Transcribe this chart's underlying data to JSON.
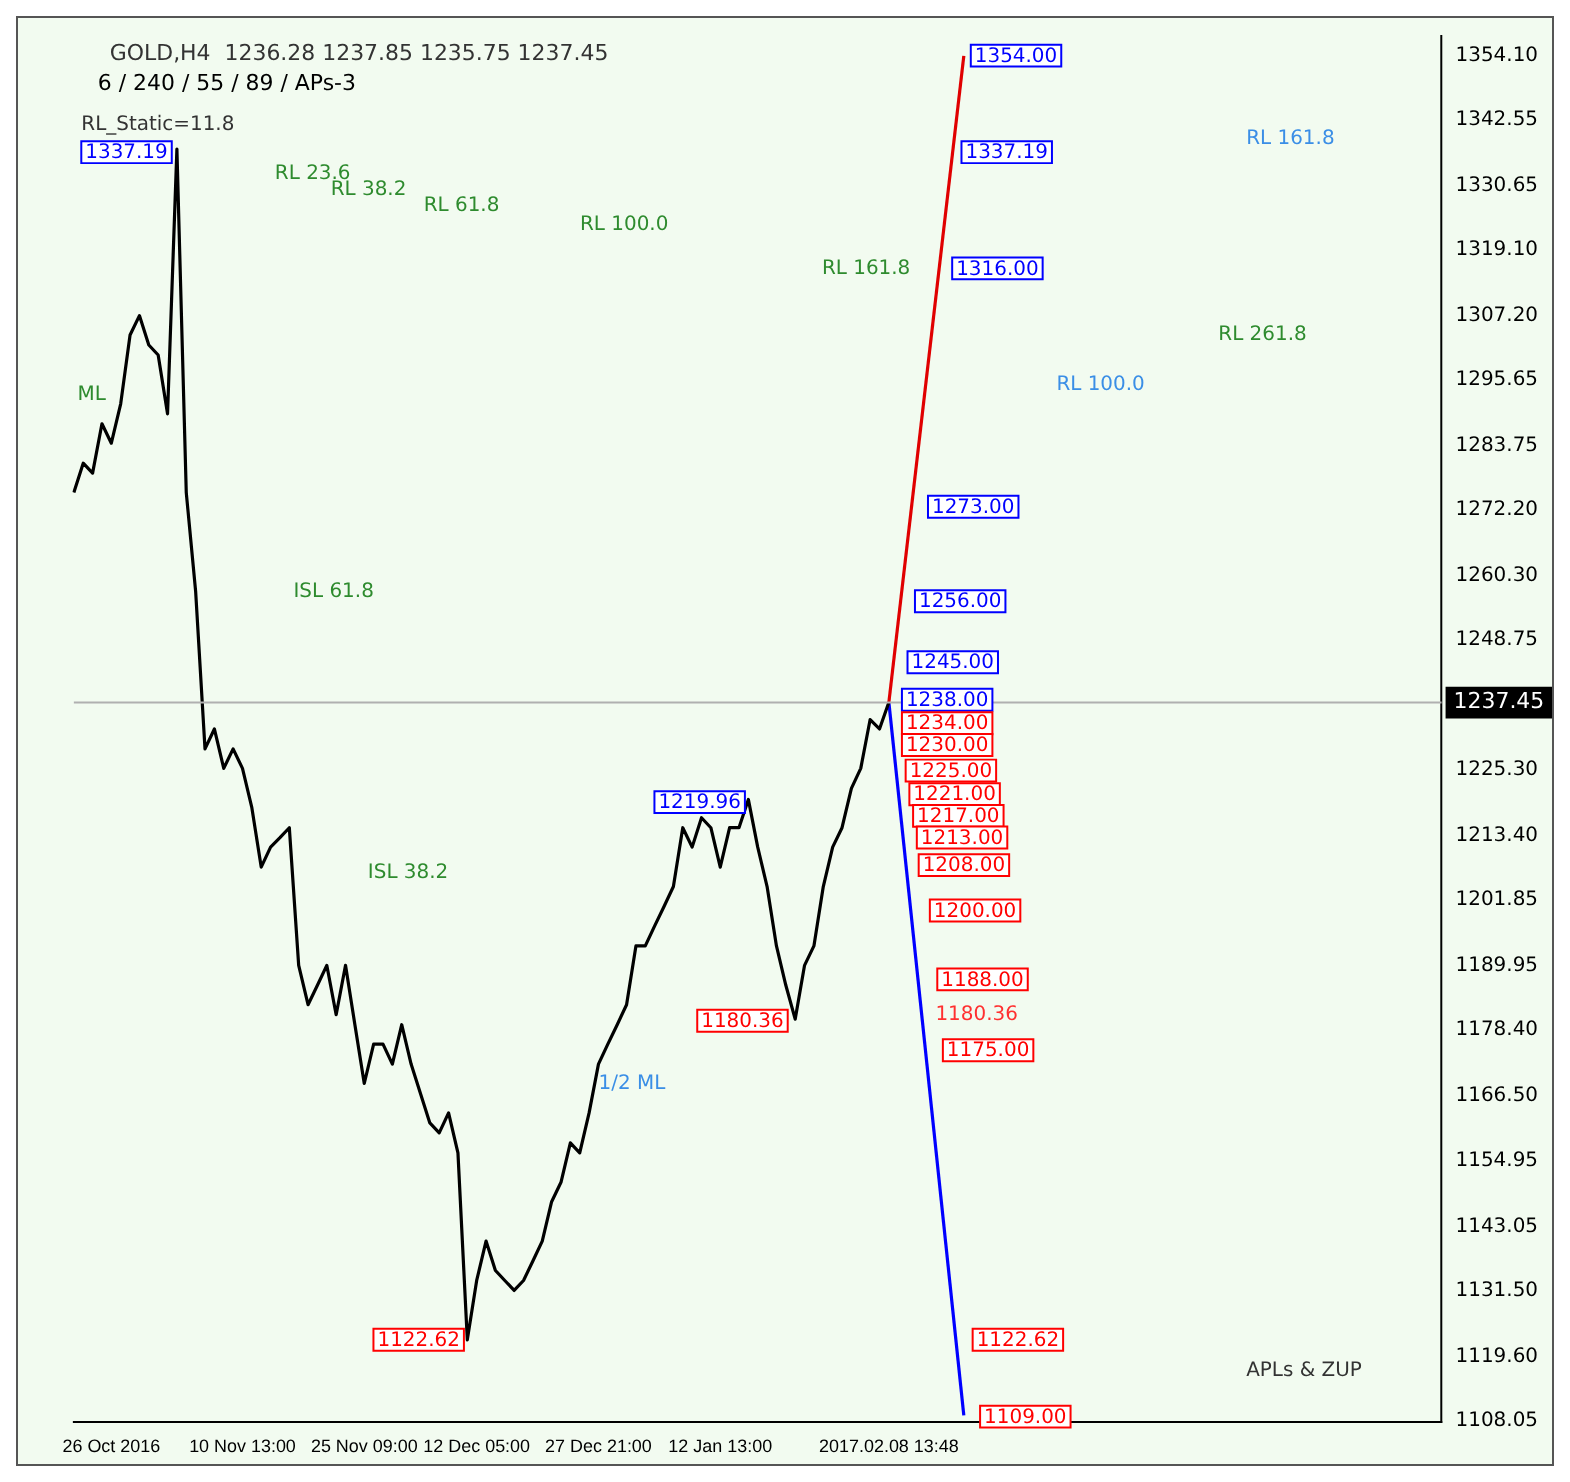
{
  "chart_data": {
    "type": "line",
    "title": "GOLD,H4  1236.28 1237.85 1235.75 1237.45",
    "subtitle": "6 / 240 / 55 / 89 / APs-3",
    "categories": [
      null,
      null,
      null,
      null,
      "26 Oct 2016",
      null,
      null,
      null,
      null,
      null,
      null,
      null,
      null,
      null,
      null,
      null,
      null,
      null,
      "10 Nov 13:00",
      null,
      null,
      null,
      null,
      null,
      null,
      null,
      null,
      null,
      null,
      null,
      null,
      "25 Nov 09:00",
      null,
      null,
      null,
      null,
      null,
      null,
      null,
      null,
      null,
      null,
      null,
      "12 Dec 05:00",
      null,
      null,
      null,
      null,
      null,
      null,
      null,
      null,
      null,
      null,
      null,
      null,
      "27 Dec 21:00",
      null,
      null,
      null,
      null,
      null,
      null,
      null,
      null,
      null,
      null,
      null,
      null,
      "12 Jan 13:00",
      null,
      null,
      null,
      null,
      null,
      null,
      null,
      null,
      null,
      null,
      null,
      null,
      null,
      null,
      null,
      null,
      null,
      "2017.02.08 13:48",
      null,
      null,
      null,
      null,
      null,
      null,
      null,
      null,
      null,
      null,
      null,
      null,
      null,
      null,
      null,
      null,
      null,
      null,
      null,
      null,
      null,
      null,
      null,
      null,
      null,
      null,
      null,
      null,
      null,
      null,
      null,
      null,
      null,
      null,
      null,
      null,
      null,
      null,
      null,
      null,
      null,
      null,
      null,
      null,
      null,
      null,
      null,
      null,
      null,
      null,
      null,
      null,
      null,
      null,
      null,
      null,
      null,
      null,
      null
    ],
    "series": [
      {
        "color": "#000000",
        "values": [
          1275.3,
          1280.6,
          1278.8,
          1287.7,
          1284.2,
          1291.3,
          1303.7,
          1307.2,
          1301.9,
          1300.1,
          1289.5,
          1337.2,
          1275.3,
          1257.5,
          1229.1,
          1232.7,
          1225.6,
          1229.1,
          1225.6,
          1218.5,
          1207.8,
          1211.4,
          1213.1,
          1214.9,
          1190.1,
          1183.0,
          1186.5,
          1190.1,
          1181.2,
          1190.1,
          1179.4,
          1168.8,
          1175.9,
          1175.9,
          1172.3,
          1179.4,
          1172.3,
          1167.0,
          1161.7,
          1159.9,
          1163.5,
          1156.3,
          1122.6,
          1133.3,
          1140.4,
          1135.1,
          1133.3,
          1131.5,
          1133.3,
          1136.8,
          1140.4,
          1147.5,
          1151.0,
          1158.1,
          1156.3,
          1163.5,
          1172.3,
          1175.9,
          1179.4,
          1183.0,
          1193.6,
          1193.6,
          1197.2,
          1200.7,
          1204.3,
          1214.9,
          1211.4,
          1216.7,
          1214.9,
          1207.8,
          1214.9,
          1214.9,
          1220.0,
          1211.4,
          1204.3,
          1193.6,
          1186.5,
          1180.4,
          1190.1,
          1193.6,
          1204.3,
          1211.4,
          1214.9,
          1222.0,
          1225.6,
          1234.4,
          1232.7,
          1237.5,
          null,
          null,
          null,
          null,
          null,
          null,
          null,
          null,
          null,
          null,
          null,
          null,
          null,
          null,
          null,
          null,
          null,
          null,
          null,
          null,
          null,
          null,
          null,
          null,
          null,
          null,
          null,
          null,
          null,
          null,
          null,
          null,
          null,
          null,
          null,
          null,
          null,
          null,
          null,
          null,
          null,
          null,
          null,
          null,
          null,
          null,
          null,
          null,
          null,
          null,
          null,
          null,
          null,
          null,
          null,
          null,
          null,
          null,
          null
        ]
      },
      {
        "color": "#e00000",
        "values": [
          null,
          null,
          null,
          null,
          null,
          null,
          null,
          null,
          null,
          null,
          null,
          null,
          null,
          null,
          null,
          null,
          null,
          null,
          null,
          null,
          null,
          null,
          null,
          null,
          null,
          null,
          null,
          null,
          null,
          null,
          null,
          null,
          null,
          null,
          null,
          null,
          null,
          null,
          null,
          null,
          null,
          null,
          null,
          null,
          null,
          null,
          null,
          null,
          null,
          null,
          null,
          null,
          null,
          null,
          null,
          null,
          null,
          null,
          null,
          null,
          null,
          null,
          null,
          null,
          null,
          null,
          null,
          null,
          null,
          null,
          null,
          null,
          null,
          null,
          null,
          null,
          null,
          null,
          null,
          null,
          null,
          null,
          null,
          null,
          null,
          null,
          null,
          1237.5,
          null,
          null,
          null,
          null,
          null,
          null,
          null,
          1354.0,
          null,
          null,
          null,
          null,
          null,
          null,
          null,
          null,
          null,
          null,
          null,
          null,
          null,
          null,
          null,
          null,
          null,
          null,
          null,
          null,
          null,
          null,
          null,
          null,
          null,
          null,
          null,
          null,
          null,
          null,
          null,
          null,
          null,
          null,
          null,
          null,
          null,
          null,
          null,
          null,
          null,
          null,
          null,
          null,
          null,
          null,
          null,
          null,
          null,
          null,
          null
        ]
      },
      {
        "color": "#0000ff",
        "values": [
          null,
          null,
          null,
          null,
          null,
          null,
          null,
          null,
          null,
          null,
          null,
          null,
          null,
          null,
          null,
          null,
          null,
          null,
          null,
          null,
          null,
          null,
          null,
          null,
          null,
          null,
          null,
          null,
          null,
          null,
          null,
          null,
          null,
          null,
          null,
          null,
          null,
          null,
          null,
          null,
          null,
          null,
          null,
          null,
          null,
          null,
          null,
          null,
          null,
          null,
          null,
          null,
          null,
          null,
          null,
          null,
          null,
          null,
          null,
          null,
          null,
          null,
          null,
          null,
          null,
          null,
          null,
          null,
          null,
          null,
          null,
          null,
          null,
          null,
          null,
          null,
          null,
          null,
          null,
          null,
          null,
          null,
          null,
          null,
          null,
          null,
          null,
          1237.5,
          null,
          null,
          null,
          null,
          null,
          null,
          null,
          1109.0,
          null,
          null,
          null,
          null,
          null,
          null,
          null,
          null,
          null,
          null,
          null,
          null,
          null,
          null,
          null,
          null,
          null,
          null,
          null,
          null,
          null,
          null,
          null,
          null,
          null,
          null,
          null,
          null,
          null,
          null,
          null,
          null,
          null,
          null,
          null,
          null,
          null,
          null,
          null,
          null,
          null,
          null,
          null,
          null,
          null,
          null,
          null,
          null,
          null,
          null,
          null
        ]
      }
    ],
    "ylim": [
      1107.7,
      1357.6
    ],
    "yticks": [
      {
        "value": 1108.05,
        "label": "1108.05"
      },
      {
        "value": 1119.6,
        "label": "1119.60"
      },
      {
        "value": 1131.5,
        "label": "1131.50"
      },
      {
        "value": 1143.05,
        "label": "1143.05"
      },
      {
        "value": 1154.95,
        "label": "1154.95"
      },
      {
        "value": 1166.5,
        "label": "1166.50"
      },
      {
        "value": 1178.4,
        "label": "1178.40"
      },
      {
        "value": 1189.95,
        "label": "1189.95"
      },
      {
        "value": 1201.85,
        "label": "1201.85"
      },
      {
        "value": 1213.4,
        "label": "1213.40"
      },
      {
        "value": 1225.3,
        "label": "1225.30"
      },
      {
        "value": 1248.75,
        "label": "1248.75"
      },
      {
        "value": 1260.3,
        "label": "1260.30"
      },
      {
        "value": 1272.2,
        "label": "1272.20"
      },
      {
        "value": 1283.75,
        "label": "1283.75"
      },
      {
        "value": 1295.65,
        "label": "1295.65"
      },
      {
        "value": 1307.2,
        "label": "1307.20"
      },
      {
        "value": 1319.1,
        "label": "1319.10"
      },
      {
        "value": 1330.65,
        "label": "1330.65"
      },
      {
        "value": 1342.55,
        "label": "1342.55"
      },
      {
        "value": 1354.1,
        "label": "1354.10"
      }
    ],
    "ref_lines": [
      {
        "axis": "y",
        "value": 1237.45,
        "label": "1237.45",
        "color": "#b0b0b0"
      }
    ],
    "annotations": [
      "1337.19",
      "1219.96",
      "1180.36",
      "1122.62",
      "1354.00",
      "1337.19",
      "1316.00",
      "1273.00",
      "1256.00",
      "1245.00",
      "1238.00",
      "1234.00",
      "1230.00",
      "1225.00",
      "1221.00",
      "1217.00",
      "1213.00",
      "1208.00",
      "1200.00",
      "1188.00",
      "1180.36",
      "1175.00",
      "1122.62",
      "1109.00",
      "RL_Static=11.8",
      "RL 23.6",
      "RL 38.2",
      "RL 61.8",
      "RL 100.0",
      "RL 161.8",
      "RL 261.8",
      "ISL 61.8",
      "ISL 38.2",
      "1/2 ML",
      "ML",
      "RL 100.0",
      "RL 161.8",
      "APLs & ZUP"
    ]
  }
}
